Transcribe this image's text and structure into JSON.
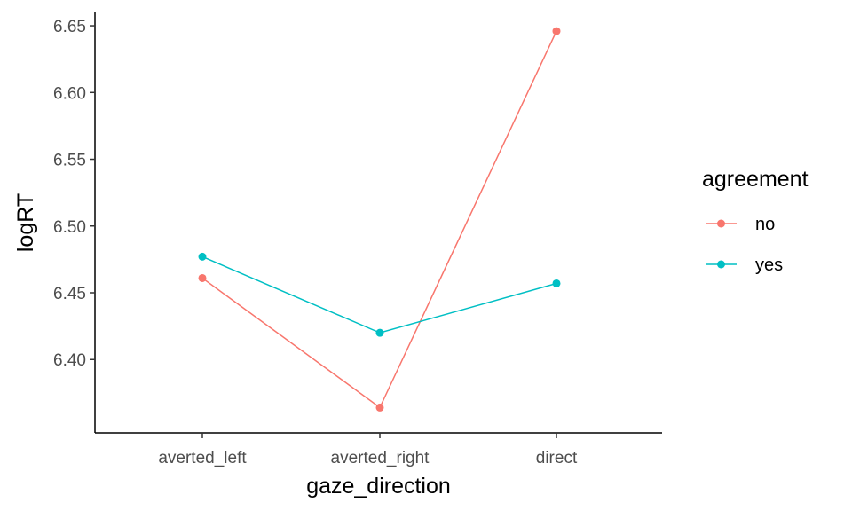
{
  "chart_data": {
    "type": "line",
    "xlabel": "gaze_direction",
    "ylabel": "logRT",
    "categories": [
      "averted_left",
      "averted_right",
      "direct"
    ],
    "ylim": [
      6.345,
      6.66
    ],
    "yticks": [
      "6.40",
      "6.45",
      "6.50",
      "6.55",
      "6.60",
      "6.65"
    ],
    "grid": false,
    "legend": {
      "title": "agreement",
      "position": "right"
    },
    "series": [
      {
        "name": "no",
        "color": "#F8766D",
        "values": [
          6.461,
          6.364,
          6.646
        ]
      },
      {
        "name": "yes",
        "color": "#00BFC4",
        "values": [
          6.477,
          6.42,
          6.457
        ]
      }
    ]
  }
}
